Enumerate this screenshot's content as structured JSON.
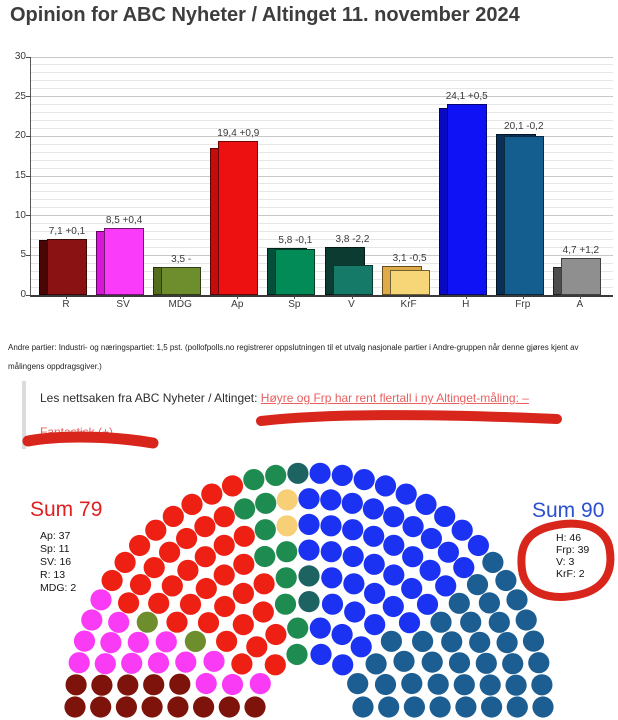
{
  "title": "Opinion for ABC Nyheter / Altinget 11. november 2024",
  "chart_data": {
    "type": "bar",
    "title": "Opinion for ABC Nyheter / Altinget 11. november 2024",
    "xlabel": "",
    "ylabel": "",
    "ylim": [
      0,
      30
    ],
    "yticks": [
      0,
      5,
      10,
      15,
      20,
      25,
      30
    ],
    "grid": "horizontal minor every 1, major every 5",
    "legend": "none",
    "categories": [
      "R",
      "SV",
      "MDG",
      "Ap",
      "Sp",
      "V",
      "KrF",
      "H",
      "Frp",
      "A"
    ],
    "series": [
      {
        "name": "current",
        "values": [
          7.1,
          8.5,
          3.5,
          19.4,
          5.8,
          3.8,
          3.1,
          24.1,
          20.1,
          4.7
        ]
      },
      {
        "name": "previous",
        "values": [
          7.0,
          8.1,
          3.5,
          18.5,
          5.9,
          6.0,
          3.6,
          23.6,
          20.3,
          3.5
        ]
      }
    ],
    "parties": [
      {
        "label": "R",
        "value": 7.1,
        "prev": 7.0,
        "value_label": "7,1",
        "change_label": "+0,1",
        "color": "#8a1212",
        "prev_color": "#4a0606"
      },
      {
        "label": "SV",
        "value": 8.5,
        "prev": 8.1,
        "value_label": "8,5",
        "change_label": "+0,4",
        "color": "#fa3bfa",
        "prev_color": "#d816d8"
      },
      {
        "label": "MDG",
        "value": 3.5,
        "prev": 3.5,
        "value_label": "3,5",
        "change_label": "-",
        "color": "#6e8e2d",
        "prev_color": "#556e1e"
      },
      {
        "label": "Ap",
        "value": 19.4,
        "prev": 18.5,
        "value_label": "19,4",
        "change_label": "+0,9",
        "color": "#ee1111",
        "prev_color": "#c50c0c"
      },
      {
        "label": "Sp",
        "value": 5.8,
        "prev": 5.9,
        "value_label": "5,8",
        "change_label": "-0,1",
        "color": "#028a57",
        "prev_color": "#02503a"
      },
      {
        "label": "V",
        "value": 3.8,
        "prev": 6.0,
        "value_label": "3,8",
        "change_label": "-2,2",
        "color": "#157a68",
        "prev_color": "#0c3b31"
      },
      {
        "label": "KrF",
        "value": 3.1,
        "prev": 3.6,
        "value_label": "3,1",
        "change_label": "-0,5",
        "color": "#f7d678",
        "prev_color": "#dfab48"
      },
      {
        "label": "H",
        "value": 24.1,
        "prev": 23.6,
        "value_label": "24,1",
        "change_label": "+0,5",
        "color": "#0f12f5",
        "prev_color": "#0a0ac2"
      },
      {
        "label": "Frp",
        "value": 20.1,
        "prev": 20.3,
        "value_label": "20,1",
        "change_label": "-0,2",
        "color": "#135e8e",
        "prev_color": "#0c2f56"
      },
      {
        "label": "A",
        "value": 4.7,
        "prev": 3.5,
        "value_label": "4,7",
        "change_label": "+1,2",
        "color": "#8f8f8f",
        "prev_color": "#4d4d4d"
      }
    ]
  },
  "note": "Andre partier: Industri- og næringspartiet: 1,5 pst. (pollofpolls.no registrerer oppslutningen til et utvalg nasjonale partier i Andre-gruppen når denne gjøres kjent av målingens oppdragsgiver.)",
  "readmore": {
    "prefix": "Les nettsaken fra ABC Nyheter / Altinget: ",
    "link_line1": "Høyre og Frp har rent flertall i ny Altinget-måling: –",
    "link_line2": "Fantastisk (+)",
    "link_color": "#e8605f"
  },
  "parliament": {
    "type": "hemicycle",
    "rows": 8,
    "total_seats": 169,
    "left_bloc": {
      "sum_label": "Sum 79",
      "color": "#e02020",
      "items": [
        "Ap: 37",
        "Sp: 11",
        "SV: 16",
        "R: 13",
        "MDG: 2"
      ]
    },
    "right_bloc": {
      "sum_label": "Sum 90",
      "color": "#2a4fd0",
      "items": [
        "H: 46",
        "Frp: 39",
        "V: 3",
        "KrF: 2"
      ]
    },
    "parties": [
      {
        "id": "R",
        "seats": 13,
        "color": "#7e130b"
      },
      {
        "id": "SV",
        "seats": 16,
        "color": "#fa3bf5"
      },
      {
        "id": "MDG",
        "seats": 2,
        "color": "#6e8e2d"
      },
      {
        "id": "Ap",
        "seats": 37,
        "color": "#ee2014"
      },
      {
        "id": "Sp",
        "seats": 11,
        "color": "#1e8b50"
      },
      {
        "id": "KrF",
        "seats": 2,
        "color": "#f6cf76"
      },
      {
        "id": "V",
        "seats": 3,
        "color": "#1d6361"
      },
      {
        "id": "H",
        "seats": 46,
        "color": "#1b32f2"
      },
      {
        "id": "Frp",
        "seats": 39,
        "color": "#1c5e92"
      }
    ]
  },
  "annotations": {
    "marker_color": "#d8261c"
  }
}
